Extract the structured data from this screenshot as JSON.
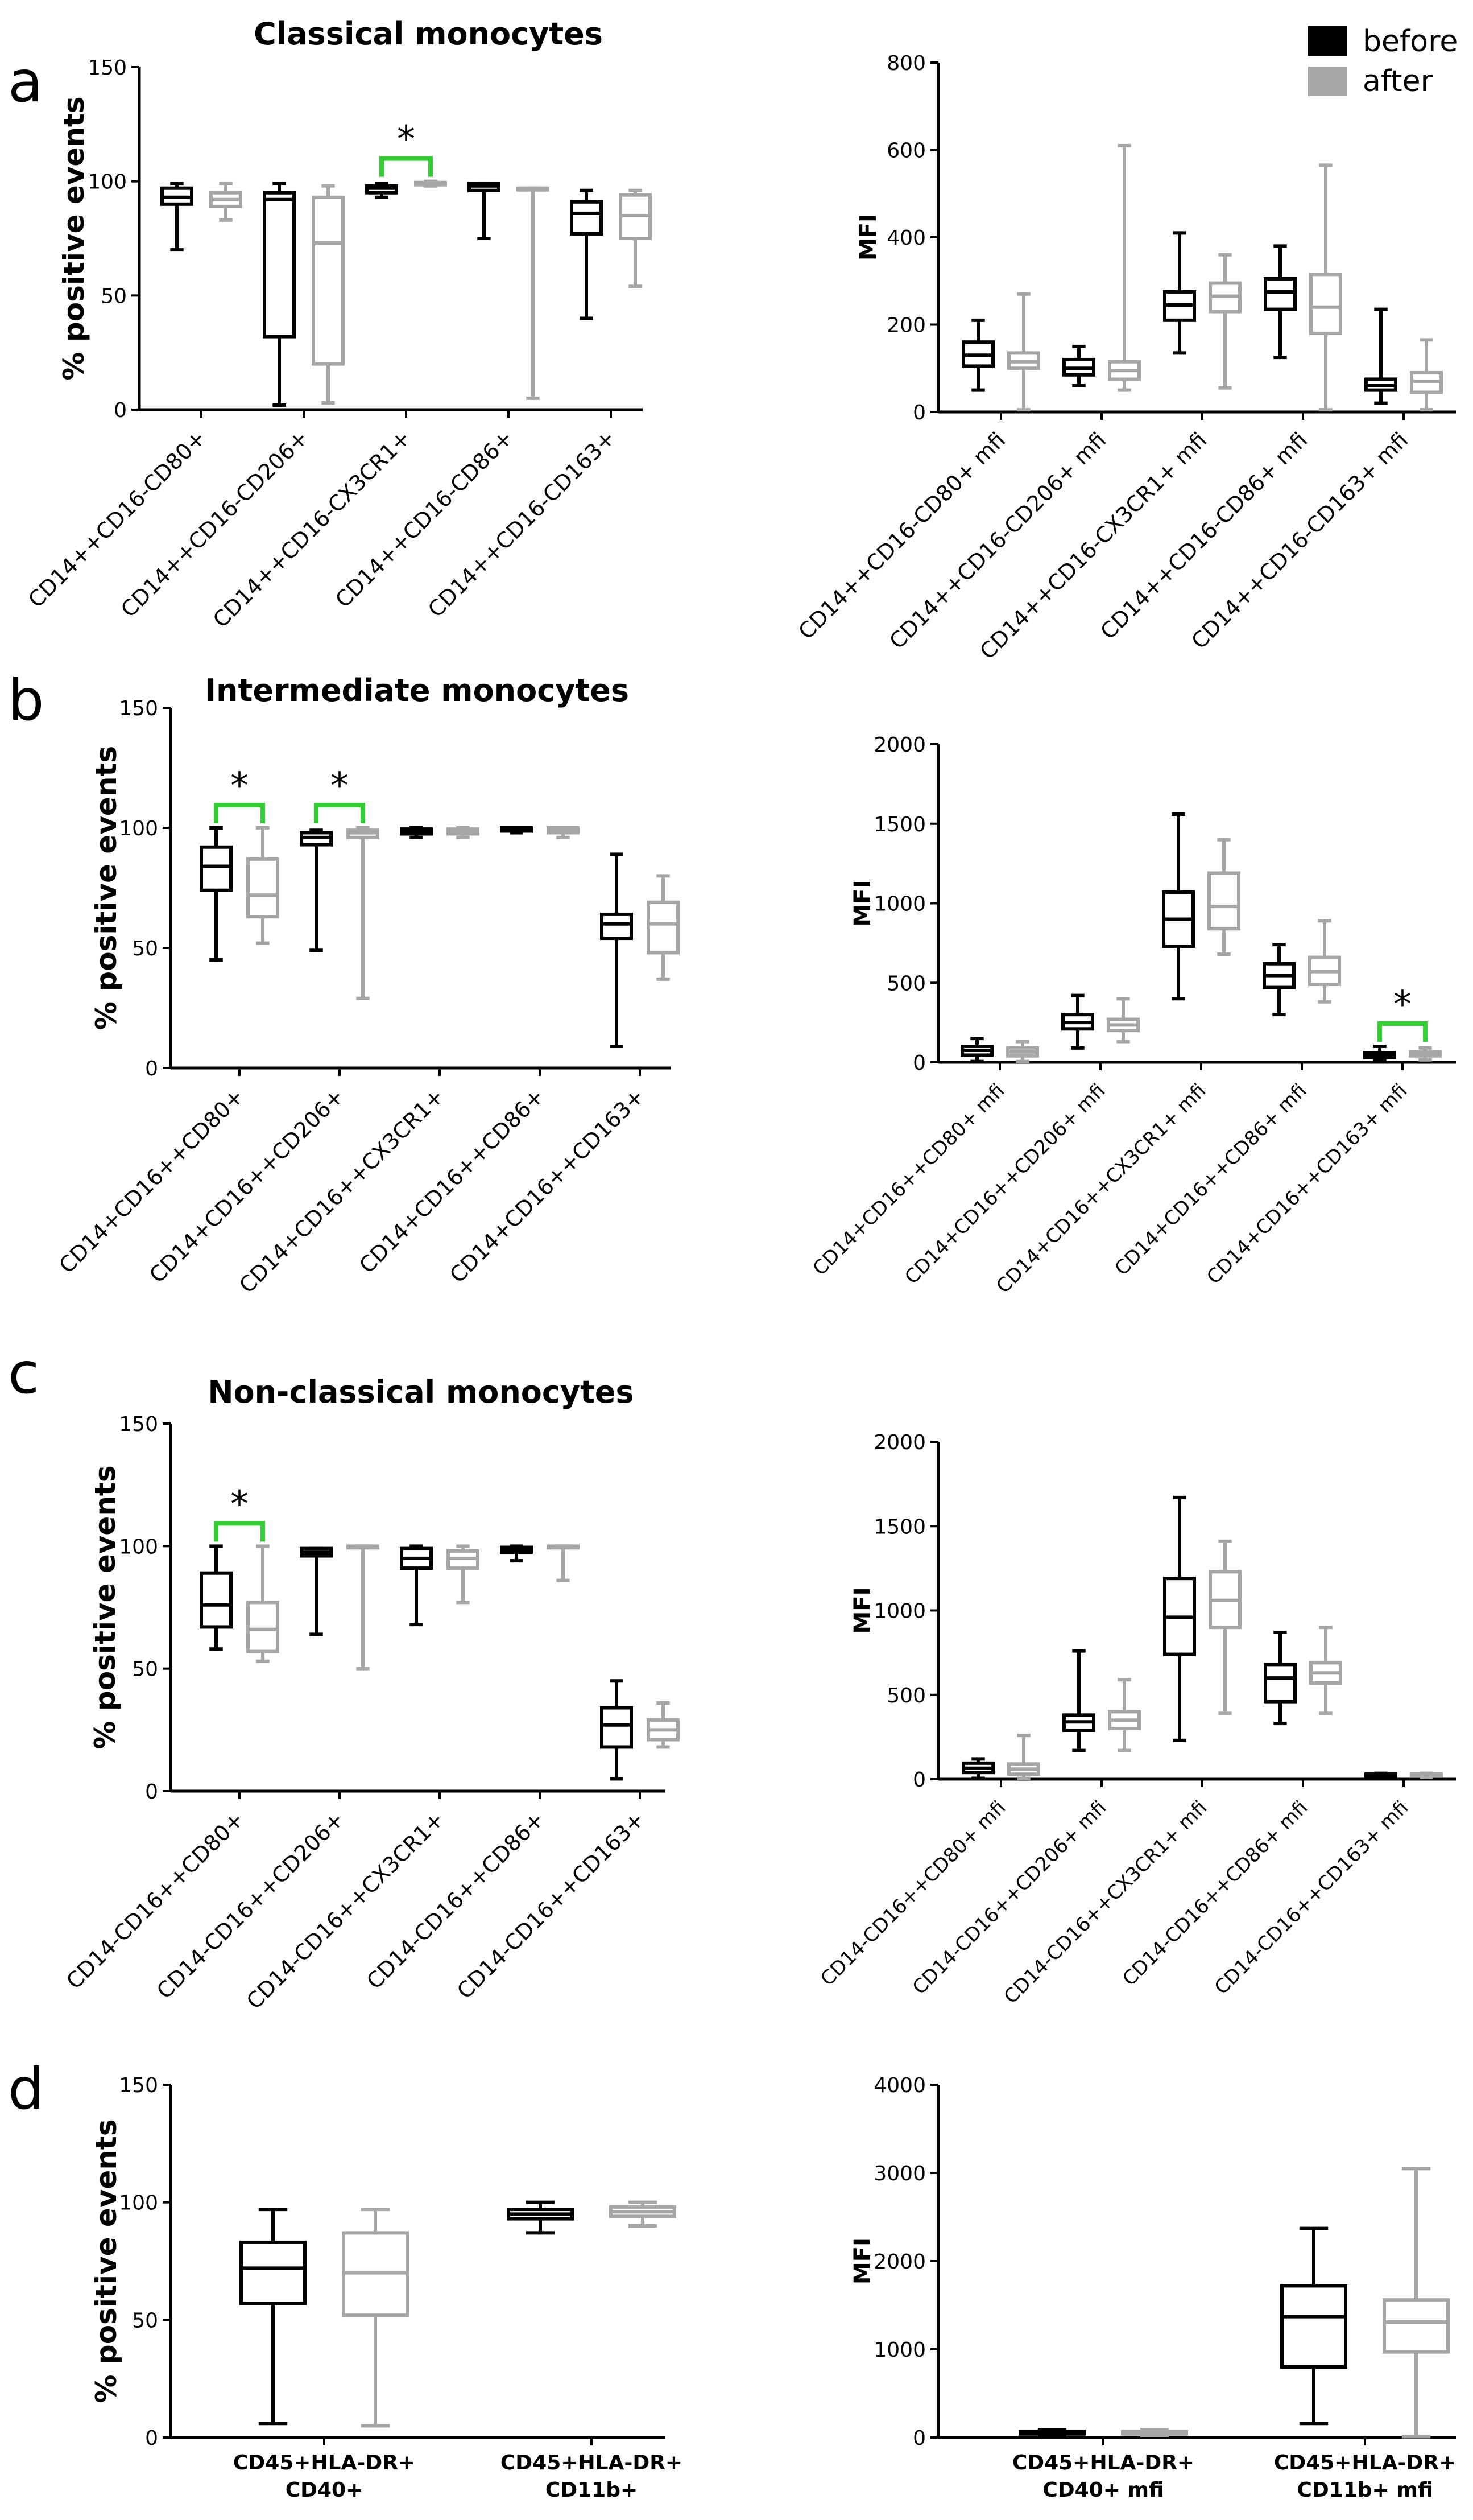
{
  "panels": {
    "a": {
      "label": "a",
      "title": "Classical monocytes"
    },
    "b": {
      "label": "b",
      "title": "Intermediate monocytes"
    },
    "c": {
      "label": "c",
      "title": "Non-classical monocytes"
    },
    "d": {
      "label": "d",
      "title": ""
    }
  },
  "legend": {
    "items": [
      {
        "name": "before",
        "color": "#000000"
      },
      {
        "name": "after",
        "color": "#a6a6a6"
      }
    ]
  },
  "colors": {
    "before": "#000000",
    "after": "#a6a6a6",
    "significance": "#33cc33"
  },
  "chart_data": [
    {
      "id": "a-left",
      "panel": "a",
      "type": "box",
      "title": "Classical monocytes",
      "ylabel": "% positive events",
      "ylim": [
        0,
        150
      ],
      "yticks": [
        0,
        50,
        100,
        150
      ],
      "categories": [
        "CD14++CD16-CD80+",
        "CD14++CD16-CD206+",
        "CD14++CD16-CX3CR1+",
        "CD14++CD16-CD86+",
        "CD14++CD16-CD163+"
      ],
      "series": [
        {
          "name": "before",
          "boxes": [
            {
              "min": 70,
              "q1": 90,
              "median": 93,
              "q3": 97,
              "max": 99
            },
            {
              "min": 2,
              "q1": 32,
              "median": 92,
              "q3": 95,
              "max": 99
            },
            {
              "min": 93,
              "q1": 95,
              "median": 97,
              "q3": 98,
              "max": 99
            },
            {
              "min": 75,
              "q1": 96,
              "median": 98,
              "q3": 99,
              "max": 99
            },
            {
              "min": 40,
              "q1": 77,
              "median": 86,
              "q3": 91,
              "max": 96
            }
          ]
        },
        {
          "name": "after",
          "boxes": [
            {
              "min": 83,
              "q1": 89,
              "median": 92,
              "q3": 95,
              "max": 99
            },
            {
              "min": 3,
              "q1": 20,
              "median": 73,
              "q3": 93,
              "max": 98
            },
            {
              "min": 98,
              "q1": 98.5,
              "median": 99,
              "q3": 99.5,
              "max": 100
            },
            {
              "min": 5,
              "q1": 97,
              "median": 97,
              "q3": 97,
              "max": 97
            },
            {
              "min": 54,
              "q1": 75,
              "median": 85,
              "q3": 94,
              "max": 96
            }
          ]
        }
      ],
      "significance": [
        {
          "category_index": 2,
          "label": "*"
        }
      ]
    },
    {
      "id": "a-right",
      "panel": "a",
      "type": "box",
      "ylabel": "MFI",
      "ylim": [
        0,
        800
      ],
      "yticks": [
        0,
        200,
        400,
        600,
        800
      ],
      "categories": [
        "CD14++CD16-CD80+ mfi",
        "CD14++CD16-CD206+ mfi",
        "CD14++CD16-CX3CR1+ mfi",
        "CD14++CD16-CD86+ mfi",
        "CD14++CD16-CD163+ mfi"
      ],
      "series": [
        {
          "name": "before",
          "boxes": [
            {
              "min": 50,
              "q1": 105,
              "median": 130,
              "q3": 160,
              "max": 210
            },
            {
              "min": 60,
              "q1": 85,
              "median": 100,
              "q3": 120,
              "max": 150
            },
            {
              "min": 135,
              "q1": 210,
              "median": 245,
              "q3": 275,
              "max": 410
            },
            {
              "min": 125,
              "q1": 235,
              "median": 275,
              "q3": 305,
              "max": 380
            },
            {
              "min": 20,
              "q1": 50,
              "median": 60,
              "q3": 75,
              "max": 235
            }
          ]
        },
        {
          "name": "after",
          "boxes": [
            {
              "min": 5,
              "q1": 100,
              "median": 115,
              "q3": 135,
              "max": 270
            },
            {
              "min": 50,
              "q1": 75,
              "median": 95,
              "q3": 115,
              "max": 610
            },
            {
              "min": 55,
              "q1": 230,
              "median": 265,
              "q3": 295,
              "max": 360
            },
            {
              "min": 5,
              "q1": 180,
              "median": 240,
              "q3": 315,
              "max": 565
            },
            {
              "min": 5,
              "q1": 45,
              "median": 70,
              "q3": 90,
              "max": 165
            }
          ]
        }
      ],
      "significance": []
    },
    {
      "id": "b-left",
      "panel": "b",
      "type": "box",
      "title": "Intermediate monocytes",
      "ylabel": "% positive events",
      "ylim": [
        0,
        150
      ],
      "yticks": [
        0,
        50,
        100,
        150
      ],
      "categories": [
        "CD14+CD16++CD80+",
        "CD14+CD16++CD206+",
        "CD14+CD16++CX3CR1+",
        "CD14+CD16++CD86+",
        "CD14+CD16++CD163+"
      ],
      "series": [
        {
          "name": "before",
          "boxes": [
            {
              "min": 45,
              "q1": 74,
              "median": 84,
              "q3": 92,
              "max": 100
            },
            {
              "min": 49,
              "q1": 93,
              "median": 96,
              "q3": 98,
              "max": 99
            },
            {
              "min": 96,
              "q1": 97.5,
              "median": 98.5,
              "q3": 99.5,
              "max": 100
            },
            {
              "min": 98,
              "q1": 98.7,
              "median": 99.5,
              "q3": 100,
              "max": 100
            },
            {
              "min": 9,
              "q1": 54,
              "median": 60,
              "q3": 64,
              "max": 89
            }
          ]
        },
        {
          "name": "after",
          "boxes": [
            {
              "min": 52,
              "q1": 63,
              "median": 72,
              "q3": 87,
              "max": 100
            },
            {
              "min": 29,
              "q1": 96,
              "median": 98,
              "q3": 99,
              "max": 100
            },
            {
              "min": 96,
              "q1": 97.5,
              "median": 98.5,
              "q3": 99.5,
              "max": 100
            },
            {
              "min": 96,
              "q1": 98,
              "median": 99,
              "q3": 100,
              "max": 100
            },
            {
              "min": 37,
              "q1": 48,
              "median": 60,
              "q3": 69,
              "max": 80
            }
          ]
        }
      ],
      "significance": [
        {
          "category_index": 0,
          "label": "*"
        },
        {
          "category_index": 1,
          "label": "*"
        }
      ]
    },
    {
      "id": "b-right",
      "panel": "b",
      "type": "box",
      "ylabel": "MFI",
      "ylim": [
        0,
        2000
      ],
      "yticks": [
        0,
        500,
        1000,
        1500,
        2000
      ],
      "categories": [
        "CD14+CD16++CD80+ mfi",
        "CD14+CD16++CD206+ mfi",
        "CD14+CD16++CX3CR1+ mfi",
        "CD14+CD16++CD86+ mfi",
        "CD14+CD16++CD163+ mfi"
      ],
      "series": [
        {
          "name": "before",
          "boxes": [
            {
              "min": 5,
              "q1": 45,
              "median": 75,
              "q3": 100,
              "max": 150
            },
            {
              "min": 90,
              "q1": 210,
              "median": 250,
              "q3": 300,
              "max": 420
            },
            {
              "min": 400,
              "q1": 730,
              "median": 900,
              "q3": 1070,
              "max": 1560
            },
            {
              "min": 300,
              "q1": 470,
              "median": 545,
              "q3": 620,
              "max": 740
            },
            {
              "min": 10,
              "q1": 30,
              "median": 45,
              "q3": 60,
              "max": 100
            }
          ]
        },
        {
          "name": "after",
          "boxes": [
            {
              "min": 5,
              "q1": 40,
              "median": 65,
              "q3": 90,
              "max": 130
            },
            {
              "min": 130,
              "q1": 200,
              "median": 235,
              "q3": 270,
              "max": 400
            },
            {
              "min": 680,
              "q1": 840,
              "median": 980,
              "q3": 1190,
              "max": 1400
            },
            {
              "min": 380,
              "q1": 490,
              "median": 570,
              "q3": 660,
              "max": 890
            },
            {
              "min": 15,
              "q1": 40,
              "median": 55,
              "q3": 65,
              "max": 90
            }
          ]
        }
      ],
      "significance": [
        {
          "category_index": 4,
          "label": "*"
        }
      ]
    },
    {
      "id": "c-left",
      "panel": "c",
      "type": "box",
      "title": "Non-classical monocytes",
      "ylabel": "% positive events",
      "ylim": [
        0,
        150
      ],
      "yticks": [
        0,
        50,
        100,
        150
      ],
      "categories": [
        "CD14-CD16++CD80+",
        "CD14-CD16++CD206+",
        "CD14-CD16++CX3CR1+",
        "CD14-CD16++CD86+",
        "CD14-CD16++CD163+"
      ],
      "series": [
        {
          "name": "before",
          "boxes": [
            {
              "min": 58,
              "q1": 67,
              "median": 76,
              "q3": 89,
              "max": 100
            },
            {
              "min": 64,
              "q1": 96,
              "median": 97.5,
              "q3": 99,
              "max": 99
            },
            {
              "min": 68,
              "q1": 91,
              "median": 95,
              "q3": 99,
              "max": 100
            },
            {
              "min": 94,
              "q1": 97.5,
              "median": 98.5,
              "q3": 99.5,
              "max": 100
            },
            {
              "min": 5,
              "q1": 18,
              "median": 27,
              "q3": 34,
              "max": 45
            }
          ]
        },
        {
          "name": "after",
          "boxes": [
            {
              "min": 53,
              "q1": 57,
              "median": 66,
              "q3": 77,
              "max": 100
            },
            {
              "min": 50,
              "q1": 99.3,
              "median": 99.6,
              "q3": 100,
              "max": 100
            },
            {
              "min": 77,
              "q1": 91,
              "median": 95,
              "q3": 98,
              "max": 100
            },
            {
              "min": 86,
              "q1": 99.3,
              "median": 99.6,
              "q3": 100,
              "max": 100
            },
            {
              "min": 18,
              "q1": 21,
              "median": 25,
              "q3": 29,
              "max": 36
            }
          ]
        }
      ],
      "significance": [
        {
          "category_index": 0,
          "label": "*"
        }
      ]
    },
    {
      "id": "c-right",
      "panel": "c",
      "type": "box",
      "ylabel": "MFI",
      "ylim": [
        0,
        2000
      ],
      "yticks": [
        0,
        500,
        1000,
        1500,
        2000
      ],
      "categories": [
        "CD14-CD16++CD80+ mfi",
        "CD14-CD16++CD206+ mfi",
        "CD14-CD16++CX3CR1+ mfi",
        "CD14-CD16++CD86+ mfi",
        "CD14-CD16++CD163+ mfi"
      ],
      "series": [
        {
          "name": "before",
          "boxes": [
            {
              "min": 5,
              "q1": 40,
              "median": 65,
              "q3": 95,
              "max": 120
            },
            {
              "min": 170,
              "q1": 290,
              "median": 340,
              "q3": 380,
              "max": 760
            },
            {
              "min": 230,
              "q1": 740,
              "median": 960,
              "q3": 1190,
              "max": 1670
            },
            {
              "min": 330,
              "q1": 460,
              "median": 600,
              "q3": 680,
              "max": 870
            },
            {
              "min": 10,
              "q1": 18,
              "median": 25,
              "q3": 30,
              "max": 35
            }
          ]
        },
        {
          "name": "after",
          "boxes": [
            {
              "min": 5,
              "q1": 30,
              "median": 60,
              "q3": 90,
              "max": 260
            },
            {
              "min": 170,
              "q1": 300,
              "median": 350,
              "q3": 400,
              "max": 590
            },
            {
              "min": 390,
              "q1": 900,
              "median": 1060,
              "q3": 1230,
              "max": 1410
            },
            {
              "min": 390,
              "q1": 570,
              "median": 630,
              "q3": 690,
              "max": 900
            },
            {
              "min": 10,
              "q1": 20,
              "median": 25,
              "q3": 30,
              "max": 35
            }
          ]
        }
      ],
      "significance": []
    },
    {
      "id": "d-left",
      "panel": "d",
      "type": "box",
      "ylabel": "% positive events",
      "ylim": [
        0,
        150
      ],
      "yticks": [
        0,
        50,
        100,
        150
      ],
      "categories": [
        "CD45+HLA-DR+ CD40+",
        "CD45+HLA-DR+ CD11b+"
      ],
      "series": [
        {
          "name": "before",
          "boxes": [
            {
              "min": 6,
              "q1": 57,
              "median": 72,
              "q3": 83,
              "max": 97
            },
            {
              "min": 87,
              "q1": 93,
              "median": 95,
              "q3": 97,
              "max": 100
            }
          ]
        },
        {
          "name": "after",
          "boxes": [
            {
              "min": 5,
              "q1": 52,
              "median": 70,
              "q3": 87,
              "max": 97
            },
            {
              "min": 90,
              "q1": 94,
              "median": 96,
              "q3": 98,
              "max": 100
            }
          ]
        }
      ],
      "significance": []
    },
    {
      "id": "d-right",
      "panel": "d",
      "type": "box",
      "ylabel": "MFI",
      "ylim": [
        0,
        4000
      ],
      "yticks": [
        0,
        1000,
        2000,
        3000,
        4000
      ],
      "categories": [
        "CD45+HLA-DR+ CD40+ mfi",
        "CD45+HLA-DR+ CD11b+ mfi"
      ],
      "series": [
        {
          "name": "before",
          "boxes": [
            {
              "min": 20,
              "q1": 40,
              "median": 55,
              "q3": 70,
              "max": 90
            },
            {
              "min": 160,
              "q1": 800,
              "median": 1370,
              "q3": 1720,
              "max": 2370
            }
          ]
        },
        {
          "name": "after",
          "boxes": [
            {
              "min": 20,
              "q1": 40,
              "median": 55,
              "q3": 70,
              "max": 90
            },
            {
              "min": 10,
              "q1": 970,
              "median": 1310,
              "q3": 1560,
              "max": 3050
            }
          ]
        }
      ],
      "significance": []
    }
  ]
}
